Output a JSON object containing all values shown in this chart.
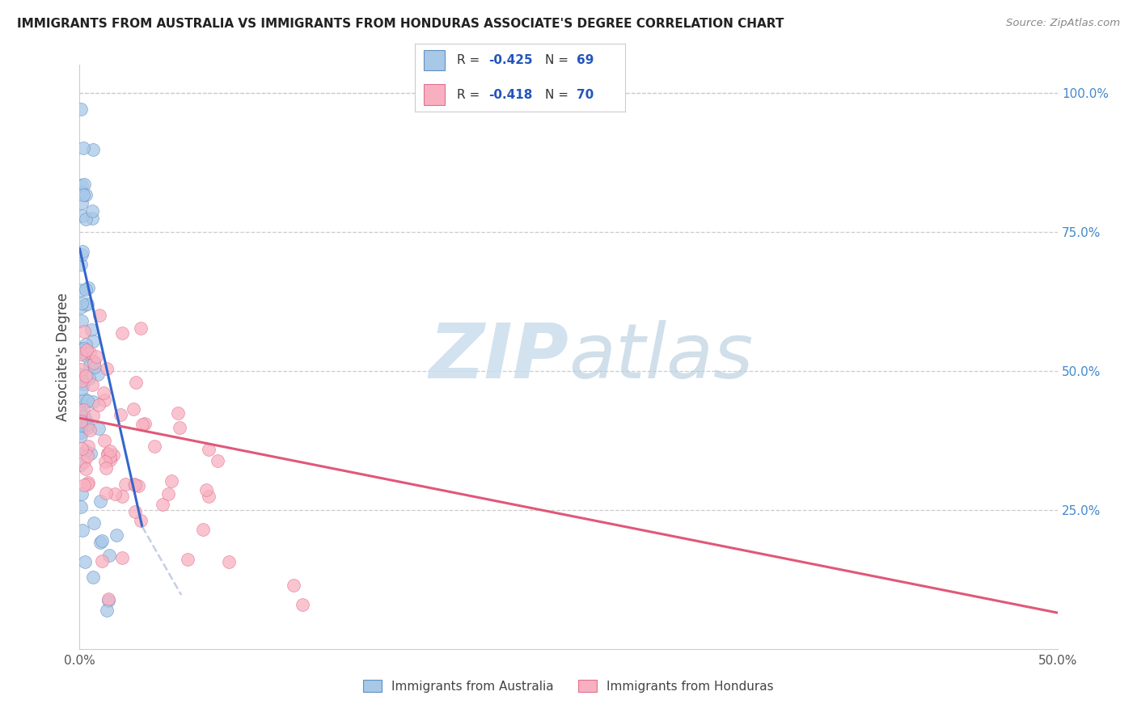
{
  "title": "IMMIGRANTS FROM AUSTRALIA VS IMMIGRANTS FROM HONDURAS ASSOCIATE'S DEGREE CORRELATION CHART",
  "source": "Source: ZipAtlas.com",
  "ylabel": "Associate's Degree",
  "right_yticks": [
    "100.0%",
    "75.0%",
    "50.0%",
    "25.0%"
  ],
  "right_ytick_vals": [
    1.0,
    0.75,
    0.5,
    0.25
  ],
  "watermark_zip": "ZIP",
  "watermark_atlas": "atlas",
  "australia_color": "#a8c8e8",
  "australia_edge_color": "#6090c0",
  "honduras_color": "#f8b0c0",
  "honduras_edge_color": "#e07090",
  "australia_line_color": "#3366cc",
  "honduras_line_color": "#e05878",
  "xmin": 0.0,
  "xmax": 0.5,
  "ymin": 0.0,
  "ymax": 1.05,
  "aus_line_x0": 0.0,
  "aus_line_y0": 0.72,
  "aus_line_x1": 0.032,
  "aus_line_y1": 0.22,
  "aus_line_ext_x1": 0.052,
  "aus_line_ext_y1": 0.097,
  "hon_line_x0": 0.0,
  "hon_line_y0": 0.415,
  "hon_line_x1": 0.5,
  "hon_line_y1": 0.065,
  "legend_R_aus": "-0.425",
  "legend_N_aus": "69",
  "legend_R_hon": "-0.418",
  "legend_N_hon": "70",
  "legend_label_aus": "Immigrants from Australia",
  "legend_label_hon": "Immigrants from Honduras"
}
